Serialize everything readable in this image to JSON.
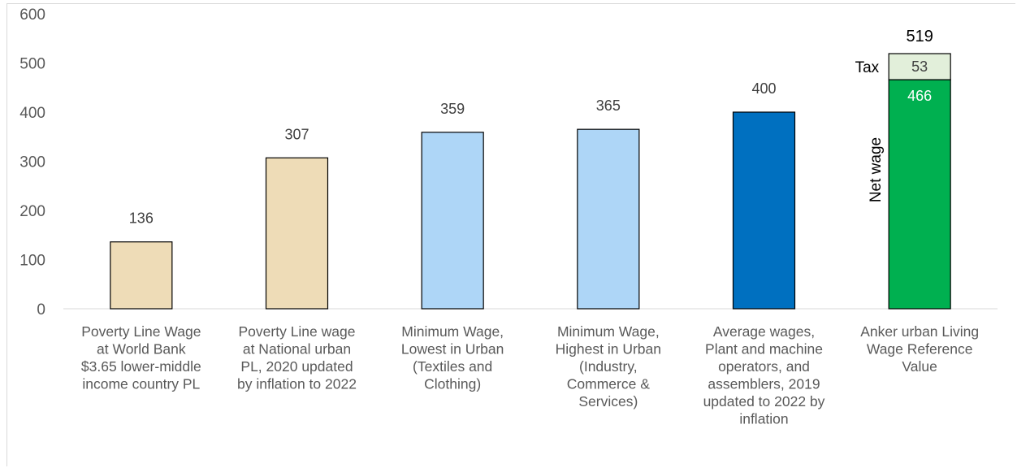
{
  "chart_data": {
    "type": "bar",
    "title": "",
    "xlabel": "",
    "ylabel": "",
    "ylim": [
      0,
      600
    ],
    "yticks": [
      "0",
      "100",
      "200",
      "300",
      "400",
      "500",
      "600"
    ],
    "grid": false,
    "legend": "none",
    "categories": [
      [
        "Poverty Line Wage",
        "at World Bank",
        "$3.65 lower-middle",
        "income country PL"
      ],
      [
        "Poverty Line wage",
        "at National urban",
        "PL, 2020 updated",
        "by inflation to 2022"
      ],
      [
        "Minimum Wage,",
        "Lowest in Urban",
        "(Textiles and",
        "Clothing)"
      ],
      [
        "Minimum Wage,",
        "Highest in Urban",
        "(Industry,",
        "Commerce &",
        "Services)"
      ],
      [
        "Average wages,",
        "Plant and machine",
        "operators, and",
        "assemblers, 2019",
        "updated to 2022 by",
        "inflation"
      ],
      [
        "Anker urban Living",
        "Wage Reference",
        "Value"
      ]
    ],
    "values": [
      136,
      307,
      359,
      365,
      400,
      519
    ],
    "value_labels": [
      "136",
      "307",
      "359",
      "365",
      "400",
      "519"
    ],
    "bar_colors": [
      "#eedcb7",
      "#eedcb7",
      "#aed6f7",
      "#aed6f7",
      "#0070c0",
      "#00b050"
    ],
    "stacked_last": {
      "segments": [
        {
          "name": "Net wage",
          "value": 466,
          "label": "466",
          "color": "#00b050",
          "label_color": "#ffffff"
        },
        {
          "name": "Tax",
          "value": 53,
          "label": "53",
          "color": "#e2efda",
          "label_color": "#404040"
        }
      ],
      "total_label": "519"
    }
  }
}
